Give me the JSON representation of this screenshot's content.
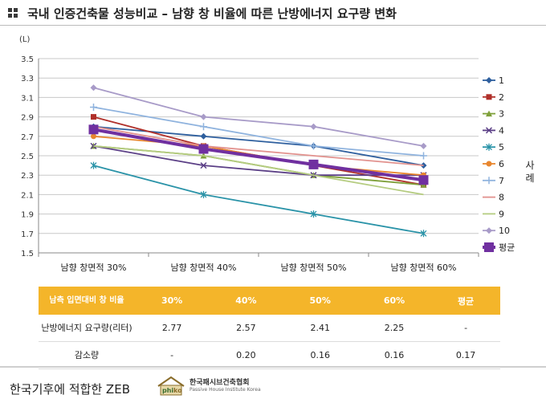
{
  "title": "국내 인증건축물 성능비교 – 남향 창 비율에 따른 난방에너지 요구량 변화",
  "chart_data": {
    "type": "line",
    "unit_label": "(L)",
    "categories": [
      "남향 창면적 30%",
      "남향 창면적 40%",
      "남향 창면적 50%",
      "남향 창면적 60%"
    ],
    "ylim": [
      1.5,
      3.5
    ],
    "yticks": [
      "3.5",
      "3.3",
      "3.1",
      "2.9",
      "2.7",
      "2.5",
      "2.3",
      "2.1",
      "1.9",
      "1.7",
      "1.5"
    ],
    "grid": true,
    "legend_position": "right",
    "legend_title": "사례",
    "series": [
      {
        "name": "1",
        "color": "#2e5f9e",
        "marker": "diamond",
        "values": [
          2.8,
          2.7,
          2.6,
          2.4
        ]
      },
      {
        "name": "2",
        "color": "#b0302a",
        "marker": "square",
        "values": [
          2.9,
          2.6,
          2.4,
          2.2
        ]
      },
      {
        "name": "3",
        "color": "#7fa03a",
        "marker": "triangle",
        "values": [
          2.6,
          2.5,
          2.3,
          2.2
        ]
      },
      {
        "name": "4",
        "color": "#5b3f86",
        "marker": "x",
        "values": [
          2.6,
          2.4,
          2.3,
          2.3
        ]
      },
      {
        "name": "5",
        "color": "#2a93a8",
        "marker": "star",
        "values": [
          2.4,
          2.1,
          1.9,
          1.7
        ]
      },
      {
        "name": "6",
        "color": "#e8862e",
        "marker": "circle",
        "values": [
          2.7,
          2.6,
          2.4,
          2.3
        ]
      },
      {
        "name": "7",
        "color": "#8fb3de",
        "marker": "plus",
        "values": [
          3.0,
          2.8,
          2.6,
          2.5
        ]
      },
      {
        "name": "8",
        "color": "#e2928e",
        "marker": "none",
        "values": [
          2.8,
          2.6,
          2.5,
          2.4
        ]
      },
      {
        "name": "9",
        "color": "#b5cc80",
        "marker": "none",
        "values": [
          2.6,
          2.5,
          2.3,
          2.1
        ]
      },
      {
        "name": "10",
        "color": "#a89bc8",
        "marker": "diamond",
        "values": [
          3.2,
          2.9,
          2.8,
          2.6
        ]
      },
      {
        "name": "평균",
        "color": "#7030a0",
        "marker": "bigsquare",
        "values": [
          2.77,
          2.57,
          2.41,
          2.25
        ]
      }
    ]
  },
  "table": {
    "headers": [
      "남측 입면대비 창 비율",
      "30%",
      "40%",
      "50%",
      "60%",
      "평균"
    ],
    "rows": [
      {
        "label": "난방에너지 요구량(리터)",
        "cells": [
          "2.77",
          "2.57",
          "2.41",
          "2.25",
          "-"
        ]
      },
      {
        "label": "감소량",
        "cells": [
          "-",
          "0.20",
          "0.16",
          "0.16",
          "0.17"
        ]
      }
    ]
  },
  "footer": {
    "text": "한국기후에 적합한 ZEB",
    "logo_text": "한국패시브건축협회",
    "logo_mark": "phiko",
    "logo_sub": "Passive House Institute Korea"
  }
}
